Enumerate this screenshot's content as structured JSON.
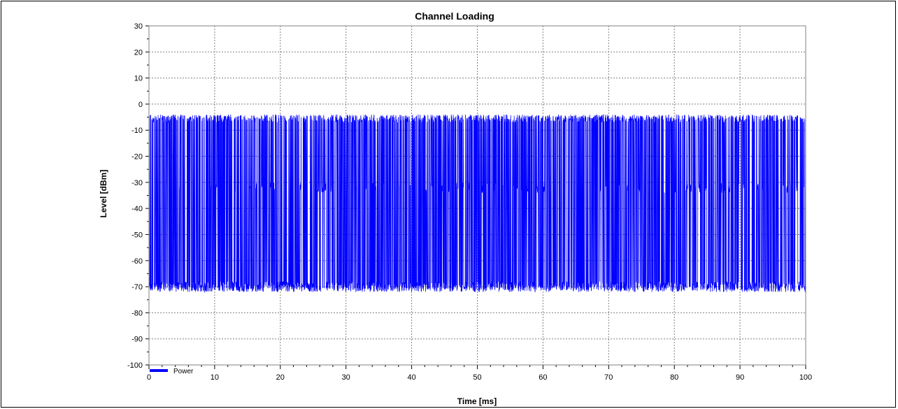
{
  "chart_data": {
    "type": "line",
    "title": "Channel Loading",
    "xlabel": "Time [ms]",
    "ylabel": "Level [dBm]",
    "xlim": [
      0,
      100
    ],
    "ylim": [
      -100,
      30
    ],
    "x_ticks": [
      0,
      10,
      20,
      30,
      40,
      50,
      60,
      70,
      80,
      90,
      100
    ],
    "y_ticks": [
      30,
      20,
      10,
      0,
      -10,
      -20,
      -30,
      -40,
      -50,
      -60,
      -70,
      -80,
      -90,
      -100
    ],
    "grid": true,
    "legend_position": "bottom-left",
    "series": [
      {
        "name": "Power",
        "color": "#0000ff",
        "pattern": "burst",
        "high_level_range": [
          -7,
          -4
        ],
        "mid_level_range": [
          -34,
          -30
        ],
        "low_level_range": [
          -72,
          -68
        ],
        "x_range": [
          0,
          100
        ]
      }
    ]
  },
  "colors": {
    "series": "#0000ff",
    "grid": "#808080",
    "axis": "#808080"
  }
}
